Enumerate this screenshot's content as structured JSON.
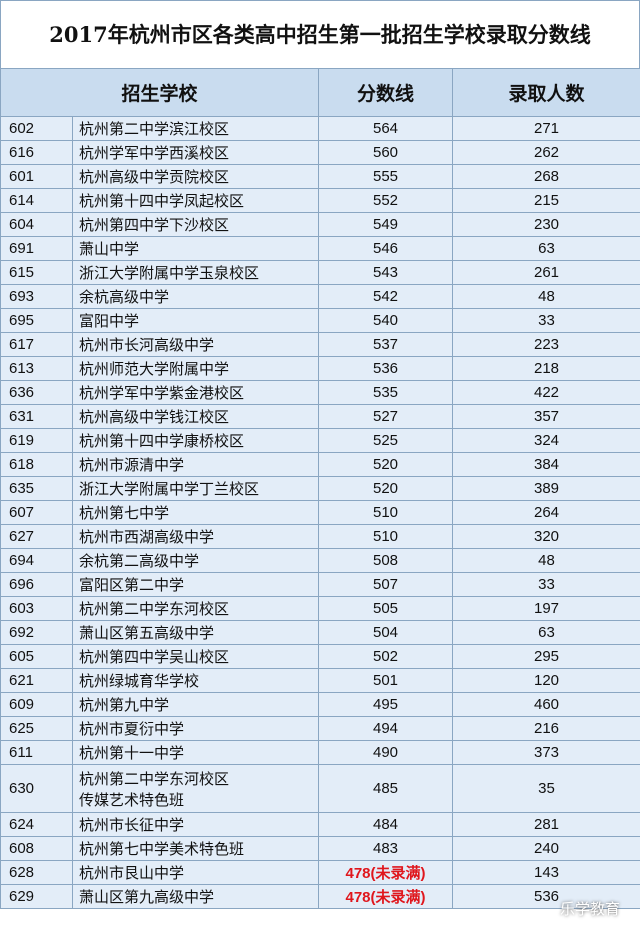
{
  "header": {
    "title": "2017年杭州市区各类高中招生第一批招生学校录取分数线"
  },
  "table": {
    "columns": [
      "招生学校",
      "分数线",
      "录取人数"
    ],
    "rows": [
      {
        "code": 602,
        "school": "杭州第二中学滨江校区",
        "score": 564,
        "enrolled": 271
      },
      {
        "code": 616,
        "school": "杭州学军中学西溪校区",
        "score": 560,
        "enrolled": 262
      },
      {
        "code": 601,
        "school": "杭州高级中学贡院校区",
        "score": 555,
        "enrolled": 268
      },
      {
        "code": 614,
        "school": "杭州第十四中学凤起校区",
        "score": 552,
        "enrolled": 215
      },
      {
        "code": 604,
        "school": "杭州第四中学下沙校区",
        "score": 549,
        "enrolled": 230
      },
      {
        "code": 691,
        "school": "萧山中学",
        "score": 546,
        "enrolled": 63
      },
      {
        "code": 615,
        "school": "浙江大学附属中学玉泉校区",
        "score": 543,
        "enrolled": 261
      },
      {
        "code": 693,
        "school": "余杭高级中学",
        "score": 542,
        "enrolled": 48
      },
      {
        "code": 695,
        "school": "富阳中学",
        "score": 540,
        "enrolled": 33
      },
      {
        "code": 617,
        "school": "杭州市长河高级中学",
        "score": 537,
        "enrolled": 223
      },
      {
        "code": 613,
        "school": "杭州师范大学附属中学",
        "score": 536,
        "enrolled": 218
      },
      {
        "code": 636,
        "school": "杭州学军中学紫金港校区",
        "score": 535,
        "enrolled": 422
      },
      {
        "code": 631,
        "school": "杭州高级中学钱江校区",
        "score": 527,
        "enrolled": 357
      },
      {
        "code": 619,
        "school": "杭州第十四中学康桥校区",
        "score": 525,
        "enrolled": 324
      },
      {
        "code": 618,
        "school": "杭州市源清中学",
        "score": 520,
        "enrolled": 384
      },
      {
        "code": 635,
        "school": "浙江大学附属中学丁兰校区",
        "score": 520,
        "enrolled": 389
      },
      {
        "code": 607,
        "school": "杭州第七中学",
        "score": 510,
        "enrolled": 264
      },
      {
        "code": 627,
        "school": "杭州市西湖高级中学",
        "score": 510,
        "enrolled": 320
      },
      {
        "code": 694,
        "school": "余杭第二高级中学",
        "score": 508,
        "enrolled": 48
      },
      {
        "code": 696,
        "school": "富阳区第二中学",
        "score": 507,
        "enrolled": 33
      },
      {
        "code": 603,
        "school": "杭州第二中学东河校区",
        "score": 505,
        "enrolled": 197
      },
      {
        "code": 692,
        "school": "萧山区第五高级中学",
        "score": 504,
        "enrolled": 63
      },
      {
        "code": 605,
        "school": "杭州第四中学吴山校区",
        "score": 502,
        "enrolled": 295
      },
      {
        "code": 621,
        "school": "杭州绿城育华学校",
        "score": 501,
        "enrolled": 120
      },
      {
        "code": 609,
        "school": "杭州第九中学",
        "score": 495,
        "enrolled": 460
      },
      {
        "code": 625,
        "school": "杭州市夏衍中学",
        "score": 494,
        "enrolled": 216
      },
      {
        "code": 611,
        "school": "杭州第十一中学",
        "score": 490,
        "enrolled": 373
      },
      {
        "code": 630,
        "school": [
          "杭州第二中学东河校区",
          "传媒艺术特色班"
        ],
        "score": 485,
        "enrolled": 35
      },
      {
        "code": 624,
        "school": "杭州市长征中学",
        "score": 484,
        "enrolled": 281
      },
      {
        "code": 608,
        "school": "杭州第七中学美术特色班",
        "score": 483,
        "enrolled": 240
      },
      {
        "code": 628,
        "school": "杭州市艮山中学",
        "score": "478(未录满)",
        "enrolled": 143
      },
      {
        "code": 629,
        "school": "萧山区第九高级中学",
        "score": "478(未录满)",
        "enrolled": 536
      }
    ]
  },
  "watermark": "乐学教育"
}
